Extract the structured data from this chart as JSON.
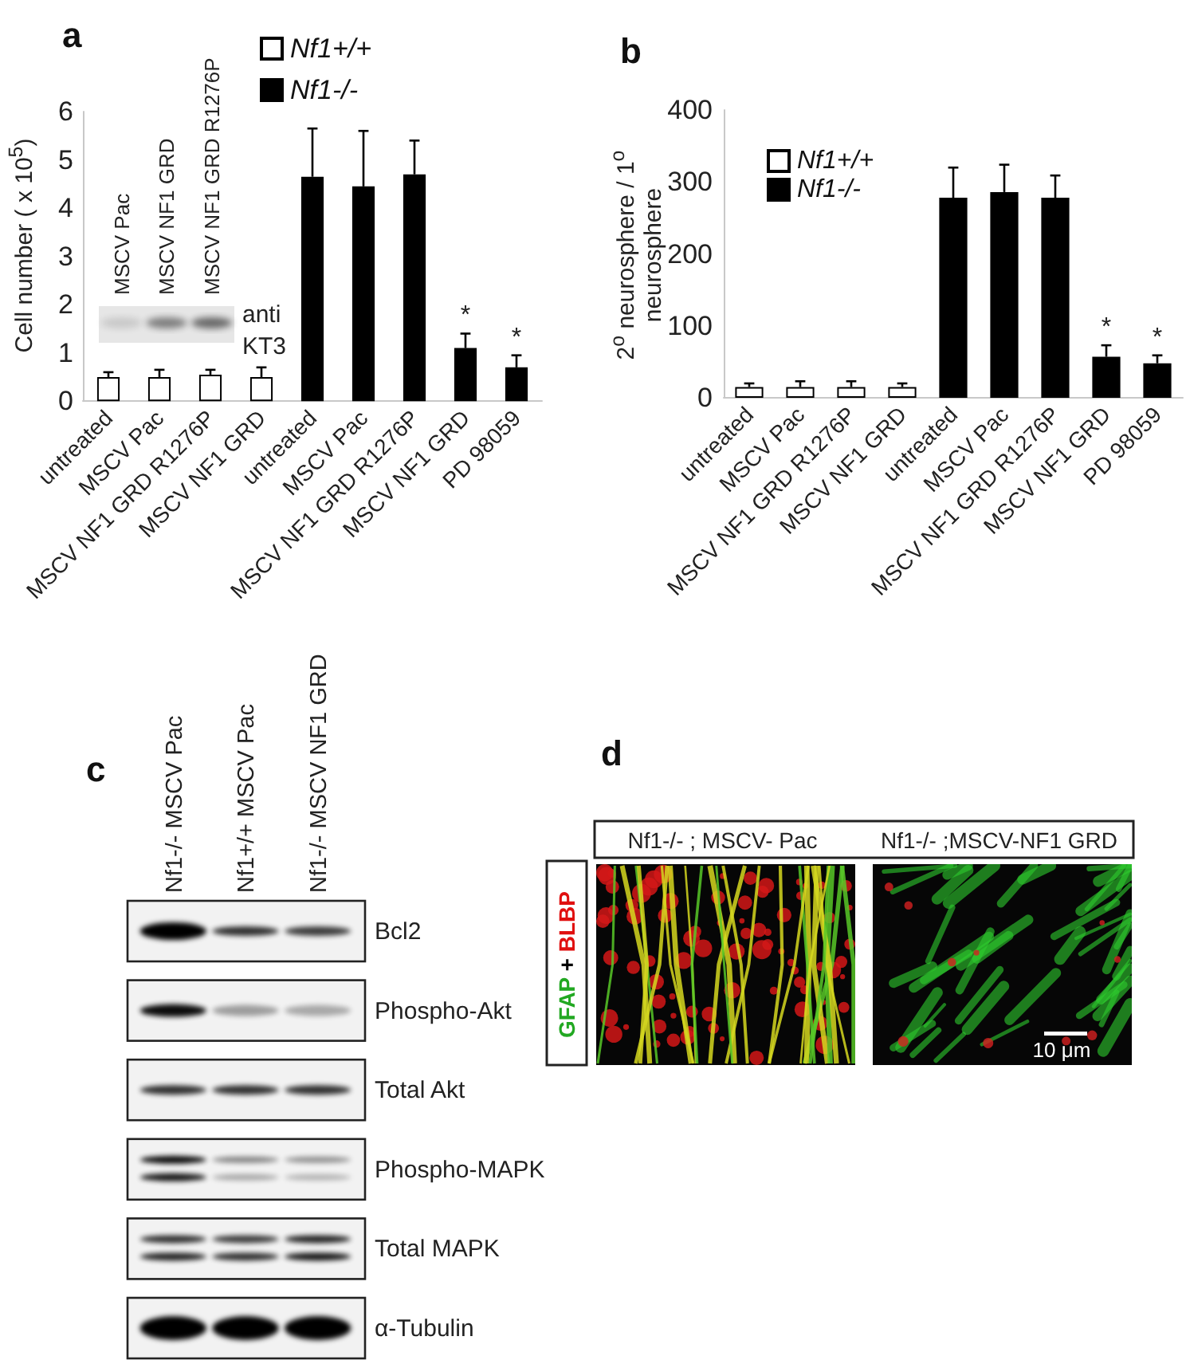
{
  "chart_data": [
    {
      "type": "bar",
      "title": "a",
      "ylabel": "Cell number ( x 10$^{5}$)",
      "categories": [
        "untreated",
        "MSCV Pac",
        "MSCV NF1 GRD R1276P",
        "MSCV NF1 GRD",
        "untreated",
        "MSCV Pac",
        "MSCV NF1 GRD R1276P",
        "MSCV NF1 GRD",
        "PD 98059"
      ],
      "series": [
        {
          "name": "Nf1+/+",
          "color": "#ffffff",
          "values": [
            0.5,
            0.5,
            0.55,
            0.5,
            null,
            null,
            null,
            null,
            null
          ],
          "errors": [
            [
              0.5,
              0.6
            ],
            [
              0.5,
              0.65
            ],
            [
              0.55,
              0.65
            ],
            [
              0.5,
              0.7
            ],
            null,
            null,
            null,
            null,
            null
          ]
        },
        {
          "name": "Nf1-/-",
          "color": "#000000",
          "values": [
            null,
            null,
            null,
            null,
            4.65,
            4.45,
            4.7,
            1.1,
            0.7
          ],
          "errors": [
            null,
            null,
            null,
            null,
            [
              4.65,
              5.65
            ],
            [
              4.45,
              5.6
            ],
            [
              4.7,
              5.4
            ],
            [
              1.1,
              1.4
            ],
            [
              0.7,
              0.95
            ]
          ],
          "value_labels": [
            null,
            null,
            null,
            null,
            null,
            null,
            null,
            "*",
            "*"
          ]
        }
      ],
      "ylim": [
        0,
        6
      ],
      "yticks": [
        0,
        1,
        2,
        3,
        4,
        5,
        6
      ],
      "legend": "top",
      "annotations": [
        "MSCV Pac",
        "MSCV NF1 GRD",
        "MSCV NF1 GRD R1276P",
        "anti\nKT3"
      ]
    },
    {
      "type": "bar",
      "title": "b",
      "ylabel": "2$^{o}$ neurosphere / 1$^{o}$\nneurosphere",
      "categories": [
        "untreated",
        "MSCV Pac",
        "MSCV NF1 GRD R1276P",
        "MSCV NF1 GRD",
        "untreated",
        "MSCV Pac",
        "MSCV NF1 GRD R1276P",
        "MSCV NF1 GRD",
        "PD 98059"
      ],
      "series": [
        {
          "name": "Nf1+/+",
          "color": "#ffffff",
          "values": [
            15,
            15,
            15,
            15,
            null,
            null,
            null,
            null,
            null
          ],
          "errors": [
            [
              15,
              20
            ],
            [
              15,
              23
            ],
            [
              15,
              23
            ],
            [
              15,
              20
            ],
            null,
            null,
            null,
            null,
            null
          ]
        },
        {
          "name": "Nf1-/-",
          "color": "#000000",
          "values": [
            null,
            null,
            null,
            null,
            278,
            286,
            278,
            57,
            48
          ],
          "errors": [
            null,
            null,
            null,
            null,
            [
              278,
              320
            ],
            [
              286,
              324
            ],
            [
              278,
              309
            ],
            [
              57,
              73
            ],
            [
              48,
              59
            ]
          ],
          "value_labels": [
            null,
            null,
            null,
            null,
            null,
            null,
            null,
            "*",
            "*"
          ]
        }
      ],
      "ylim": [
        0,
        400
      ],
      "yticks": [
        0,
        100,
        200,
        300,
        400
      ],
      "legend": "top left"
    },
    {
      "type": "other",
      "title": "c",
      "categories": [
        "Nf1-/- MSCV Pac",
        "Nf1+/+ MSCV Pac",
        "Nf1-/- MSCV NF1 GRD"
      ],
      "y_categories": [
        "Bcl2",
        "Phospho-Akt",
        "Total Akt",
        "Phospho-MAPK",
        "Total MAPK",
        "α-Tubulin"
      ]
    },
    {
      "type": "other",
      "title": "d",
      "categories": [
        "Nf1-/- ; MSCV- Pac",
        "Nf1-/- ;MSCV-NF1 GRD"
      ],
      "ylabel": "GFAP + BLBP",
      "colors": [
        "#22a822",
        "#000000",
        "#e01010"
      ],
      "annotations": [
        "10 μm"
      ]
    }
  ]
}
